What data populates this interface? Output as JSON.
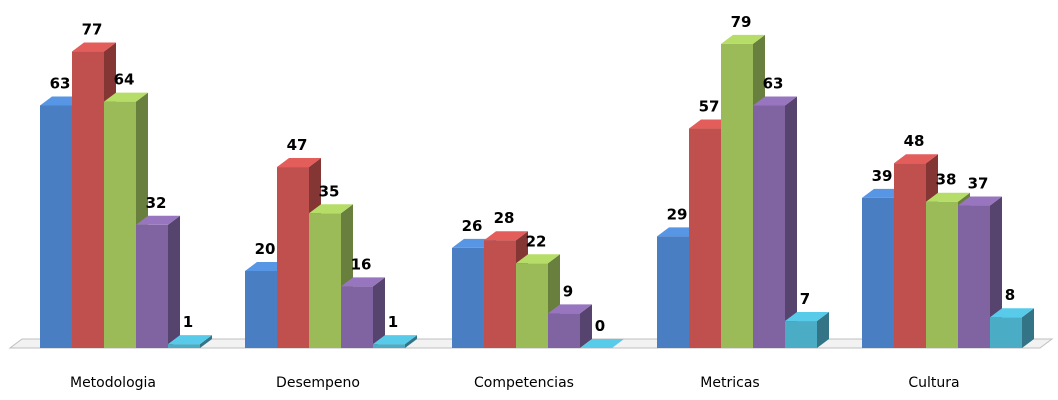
{
  "chart_data": {
    "type": "bar",
    "variant": "3d-clustered-column",
    "categories": [
      "Metodologia",
      "Desempeno",
      "Competencias",
      "Metricas",
      "Cultura"
    ],
    "series": [
      {
        "color": "#4a7ec2",
        "values": [
          63,
          20,
          26,
          29,
          39
        ]
      },
      {
        "color": "#c0504d",
        "values": [
          77,
          47,
          28,
          57,
          48
        ]
      },
      {
        "color": "#9bbb59",
        "values": [
          64,
          35,
          22,
          79,
          38
        ]
      },
      {
        "color": "#8064a2",
        "values": [
          32,
          16,
          9,
          63,
          37
        ]
      },
      {
        "color": "#4bacc6",
        "values": [
          1,
          1,
          0,
          7,
          8
        ]
      }
    ],
    "title": "",
    "xlabel": "",
    "ylabel": "",
    "ylim": [
      0,
      80
    ],
    "grid": false,
    "legend": "none",
    "data_labels": true
  }
}
